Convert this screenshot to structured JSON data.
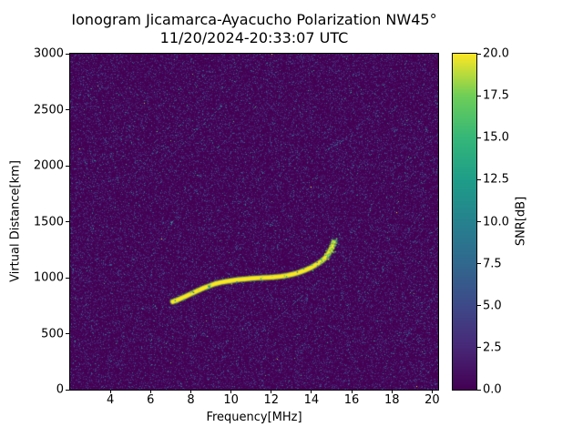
{
  "figure": {
    "title_line1": "Ionogram Jicamarca-Ayacucho Polarization NW45°",
    "title_line2": "11/20/2024-20:33:07 UTC"
  },
  "chart_data": {
    "type": "heatmap",
    "title": "Ionogram Jicamarca-Ayacucho Polarization NW45°\n11/20/2024-20:33:07 UTC",
    "xlabel": "Frequency[MHz]",
    "ylabel": "Virtual Distance[km]",
    "xlim": [
      2,
      20.3
    ],
    "ylim": [
      0,
      3000
    ],
    "xticks": [
      4,
      6,
      8,
      10,
      12,
      14,
      16,
      18,
      20
    ],
    "yticks": [
      0,
      500,
      1000,
      1500,
      2000,
      2500,
      3000
    ],
    "grid": false,
    "legend": "none",
    "colorbar": {
      "label": "SNR[dB]",
      "min": 0,
      "max": 20,
      "ticks": [
        0,
        2.5,
        5,
        7.5,
        10,
        12.5,
        15,
        17.5,
        20
      ],
      "tick_labels": [
        "0.0",
        "2.5",
        "5.0",
        "7.5",
        "10.0",
        "12.5",
        "15.0",
        "17.5",
        "20.0"
      ],
      "colormap": "viridis"
    },
    "background_snr_db": 0,
    "noise": {
      "fraction": 0.35,
      "mean_db": 2.0,
      "seed": 1337
    },
    "trace": {
      "name": "ionospheric-echo",
      "peak_snr_db": 20,
      "points": [
        [
          7.1,
          785
        ],
        [
          7.25,
          795
        ],
        [
          7.45,
          810
        ],
        [
          7.7,
          830
        ],
        [
          8.0,
          855
        ],
        [
          8.3,
          880
        ],
        [
          8.6,
          905
        ],
        [
          8.9,
          925
        ],
        [
          9.2,
          945
        ],
        [
          9.5,
          958
        ],
        [
          9.8,
          968
        ],
        [
          10.1,
          976
        ],
        [
          10.4,
          983
        ],
        [
          10.7,
          988
        ],
        [
          11.0,
          993
        ],
        [
          11.3,
          997
        ],
        [
          11.6,
          1000
        ],
        [
          11.9,
          1003
        ],
        [
          12.2,
          1007
        ],
        [
          12.5,
          1012
        ],
        [
          12.8,
          1020
        ],
        [
          13.1,
          1032
        ],
        [
          13.4,
          1048
        ],
        [
          13.7,
          1068
        ],
        [
          14.0,
          1092
        ],
        [
          14.25,
          1118
        ],
        [
          14.5,
          1148
        ],
        [
          14.7,
          1180
        ],
        [
          14.85,
          1215
        ],
        [
          14.95,
          1250
        ],
        [
          15.05,
          1285
        ],
        [
          15.1,
          1315
        ]
      ],
      "spread_points": [
        [
          14.55,
          1175
        ],
        [
          14.6,
          1150
        ],
        [
          14.7,
          1210
        ],
        [
          14.75,
          1190
        ],
        [
          14.8,
          1240
        ],
        [
          14.9,
          1270
        ],
        [
          14.95,
          1225
        ],
        [
          15.0,
          1300
        ],
        [
          15.05,
          1255
        ],
        [
          15.1,
          1330
        ],
        [
          15.15,
          1355
        ],
        [
          15.2,
          1300
        ]
      ]
    }
  },
  "colors": {
    "figure_background": "#ffffff",
    "map_background": "#440154",
    "trace_peak": "#fde725",
    "axis_text": "#000000"
  }
}
